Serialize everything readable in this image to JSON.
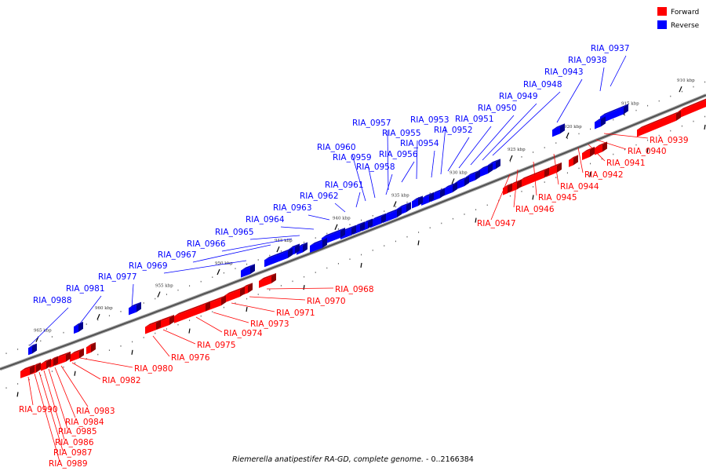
{
  "legend": [
    {
      "label": "Forward",
      "color": "#ff0000"
    },
    {
      "label": "Reverse",
      "color": "#0000ff"
    }
  ],
  "caption": {
    "organism": "Riemerella anatipestifer RA-GD, complete genome.",
    "range": " - 0..2166384"
  },
  "ticks": [
    "910 kbp",
    "915 kbp",
    "920 kbp",
    "925 kbp",
    "930 kbp",
    "935 kbp",
    "940 kbp",
    "945 kbp",
    "950 kbp",
    "955 kbp",
    "960 kbp",
    "965 kbp"
  ],
  "reverse_genes": [
    "RIA_0937",
    "RIA_0938",
    "RIA_0943",
    "RIA_0948",
    "RIA_0949",
    "RIA_0950",
    "RIA_0951",
    "RIA_0952",
    "RIA_0953",
    "RIA_0954",
    "RIA_0955",
    "RIA_0956",
    "RIA_0957",
    "RIA_0958",
    "RIA_0959",
    "RIA_0960",
    "RIA_0961",
    "RIA_0962",
    "RIA_0963",
    "RIA_0964",
    "RIA_0965",
    "RIA_0966",
    "RIA_0967",
    "RIA_0969",
    "RIA_0977",
    "RIA_0981",
    "RIA_0988"
  ],
  "forward_genes": [
    "RIA_0939",
    "RIA_0940",
    "RIA_0941",
    "RIA_0942",
    "RIA_0944",
    "RIA_0945",
    "RIA_0946",
    "RIA_0947",
    "RIA_0968",
    "RIA_0970",
    "RIA_0971",
    "RIA_0973",
    "RIA_0974",
    "RIA_0975",
    "RIA_0976",
    "RIA_0980",
    "RIA_0982",
    "RIA_0983",
    "RIA_0984",
    "RIA_0985",
    "RIA_0986",
    "RIA_0987",
    "RIA_0989",
    "RIA_0990"
  ]
}
